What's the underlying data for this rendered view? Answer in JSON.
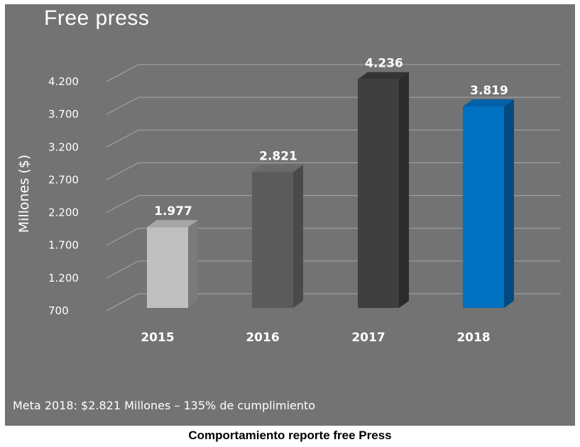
{
  "chart_data": {
    "type": "bar",
    "title": "Free press",
    "ylabel": "Millones ($)",
    "xlabel": "",
    "categories": [
      "2015",
      "2016",
      "2017",
      "2018"
    ],
    "values": [
      1977,
      2821,
      4236,
      3819
    ],
    "value_labels": [
      "1.977",
      "2.821",
      "4.236",
      "3.819"
    ],
    "yticks": [
      700,
      1200,
      1700,
      2200,
      2700,
      3200,
      3700,
      4200
    ],
    "ytick_labels": [
      "700",
      "1.200",
      "1.700",
      "2.200",
      "2.700",
      "3.200",
      "3.700",
      "4.200"
    ],
    "ylim": [
      700,
      4200
    ],
    "grid": true,
    "legend": "none",
    "bar_colors": [
      {
        "front": "#bfbfbf",
        "side": "#7a7a7a",
        "top": "#a6a6a6"
      },
      {
        "front": "#5b5b5b",
        "side": "#4a4a4a",
        "top": "#6a6a6a"
      },
      {
        "front": "#3f3f3f",
        "side": "#2b2b2b",
        "top": "#333333"
      },
      {
        "front": "#0070c0",
        "side": "#004a80",
        "top": "#0060a8"
      }
    ]
  },
  "annotation": "Meta 2018: $2.821 Millones – 135% de cumplimiento",
  "caption": "Comportamiento reporte free Press",
  "colors": {
    "panel": "#737373",
    "text": "#ffffff",
    "grid": "#a8a8a8"
  }
}
